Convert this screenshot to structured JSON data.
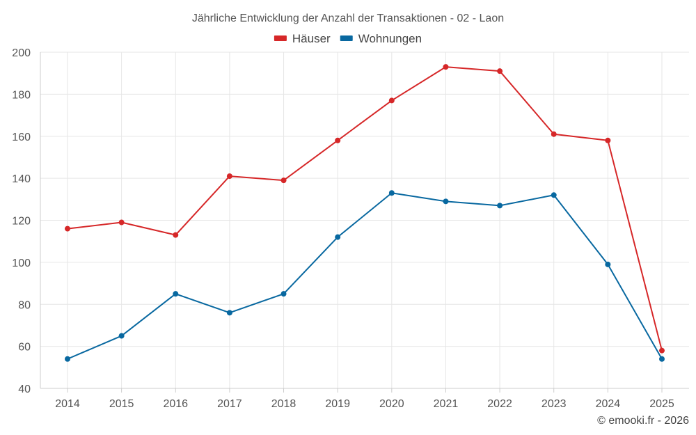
{
  "chart_data": {
    "type": "line",
    "title": "Jährliche Entwicklung der Anzahl der Transaktionen - 02 - Laon",
    "categories": [
      "2014",
      "2015",
      "2016",
      "2017",
      "2018",
      "2019",
      "2020",
      "2021",
      "2022",
      "2023",
      "2024",
      "2025"
    ],
    "series": [
      {
        "name": "Häuser",
        "color": "#d62728",
        "values": [
          116,
          119,
          113,
          141,
          139,
          158,
          177,
          193,
          191,
          161,
          158,
          58
        ]
      },
      {
        "name": "Wohnungen",
        "color": "#0868a0",
        "values": [
          54,
          65,
          85,
          76,
          85,
          112,
          133,
          129,
          127,
          132,
          99,
          54
        ]
      }
    ],
    "ylim": [
      40,
      200
    ],
    "yticks": [
      40,
      60,
      80,
      100,
      120,
      140,
      160,
      180,
      200
    ],
    "ytick_labels": [
      "40",
      "60",
      "80",
      "100",
      "120",
      "140",
      "160",
      "180",
      "200"
    ],
    "xlabel": "",
    "ylabel": "",
    "grid": true,
    "legend_position": "top-center"
  },
  "credit": "© emooki.fr - 2026"
}
